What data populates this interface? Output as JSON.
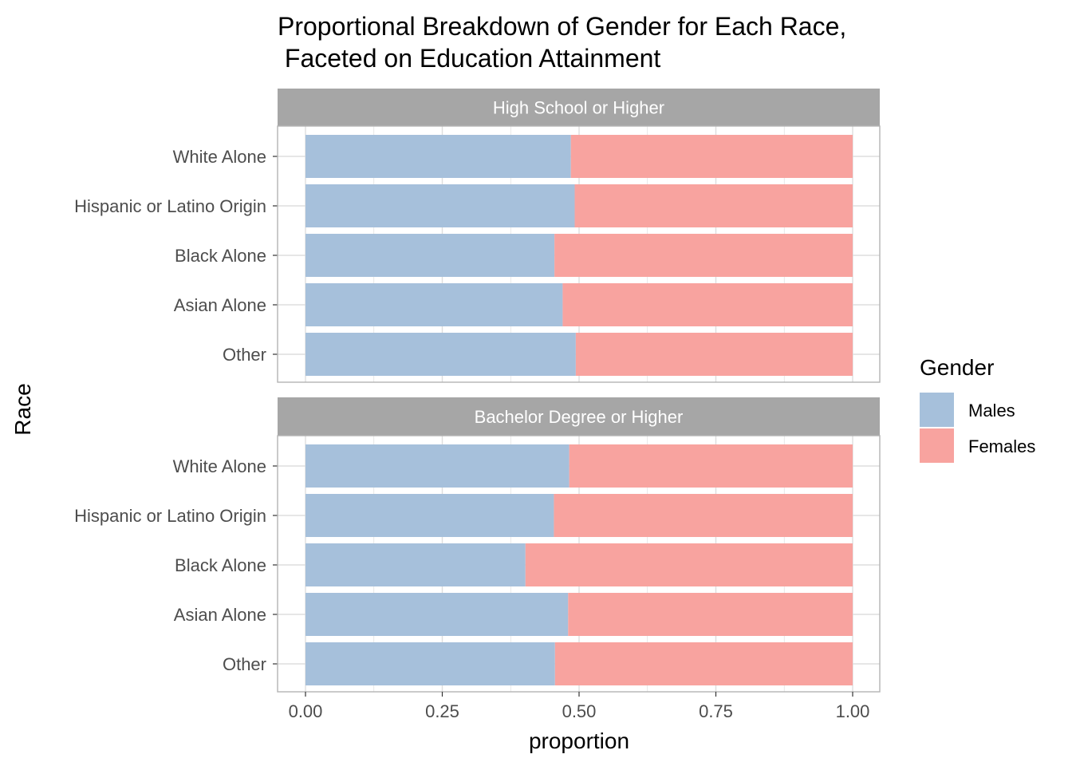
{
  "chart_data": {
    "type": "bar",
    "orientation": "horizontal",
    "stacked": true,
    "title_line1": "Proportional Breakdown of Gender for Each Race,",
    "title_line2": " Faceted on Education Attainment",
    "xlabel": "proportion",
    "ylabel": "Race",
    "xlim": [
      0,
      1
    ],
    "x_ticks": [
      "0.00",
      "0.25",
      "0.50",
      "0.75",
      "1.00"
    ],
    "categories": [
      "White Alone",
      "Hispanic or Latino Origin",
      "Black Alone",
      "Asian Alone",
      "Other"
    ],
    "legend": {
      "title": "Gender",
      "position": "right",
      "entries": [
        "Males",
        "Females"
      ]
    },
    "colors": {
      "Males": "#a6c0db",
      "Females": "#f8a39f",
      "strip": "#a6a6a6",
      "grid": "#dedede",
      "border": "#b3b3b3"
    },
    "grid": true,
    "facets": [
      {
        "label": "High School or Higher",
        "series": [
          {
            "name": "Males",
            "values": [
              0.485,
              0.492,
              0.455,
              0.47,
              0.494
            ]
          },
          {
            "name": "Females",
            "values": [
              0.515,
              0.508,
              0.545,
              0.53,
              0.506
            ]
          }
        ]
      },
      {
        "label": "Bachelor Degree or Higher",
        "series": [
          {
            "name": "Males",
            "values": [
              0.482,
              0.454,
              0.402,
              0.48,
              0.456
            ]
          },
          {
            "name": "Females",
            "values": [
              0.518,
              0.546,
              0.598,
              0.52,
              0.544
            ]
          }
        ]
      }
    ]
  }
}
